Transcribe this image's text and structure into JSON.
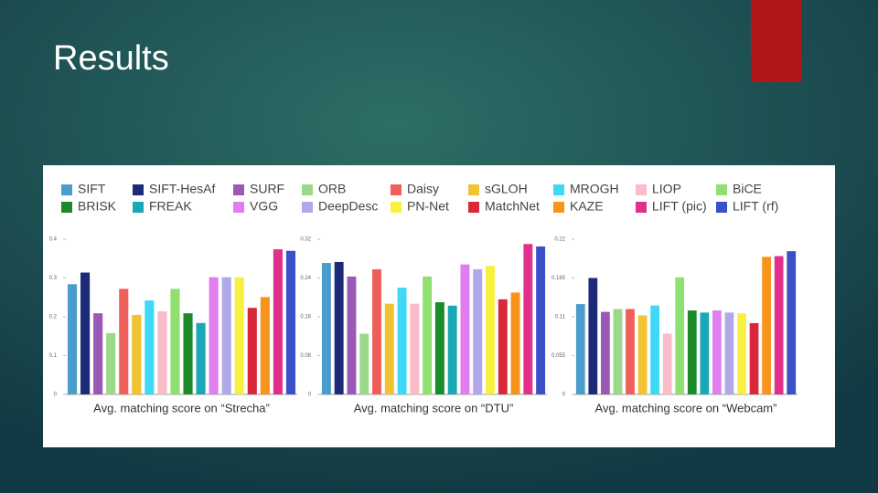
{
  "slide_title": "Results",
  "methods": [
    {
      "name": "SIFT",
      "color": "#4a9ccc"
    },
    {
      "name": "SIFT-HesAf",
      "color": "#1c2a78"
    },
    {
      "name": "SURF",
      "color": "#9b59b6"
    },
    {
      "name": "ORB",
      "color": "#9ad88a"
    },
    {
      "name": "Daisy",
      "color": "#f0605a"
    },
    {
      "name": "sGLOH",
      "color": "#f2c230"
    },
    {
      "name": "MROGH",
      "color": "#3fd9f5"
    },
    {
      "name": "LIOP",
      "color": "#f9bcc8"
    },
    {
      "name": "BiCE",
      "color": "#8fe070"
    },
    {
      "name": "BRISK",
      "color": "#1a8a2a"
    },
    {
      "name": "FREAK",
      "color": "#1aa8b8"
    },
    {
      "name": "VGG",
      "color": "#e07ef0"
    },
    {
      "name": "DeepDesc",
      "color": "#b0a8e8"
    },
    {
      "name": "PN-Net",
      "color": "#f8f040"
    },
    {
      "name": "MatchNet",
      "color": "#d8283a"
    },
    {
      "name": "KAZE",
      "color": "#f8941c"
    },
    {
      "name": "LIFT (pic)",
      "color": "#e0308a"
    },
    {
      "name": "LIFT (rf)",
      "color": "#3a50c8"
    }
  ],
  "chart_data": [
    {
      "type": "bar",
      "xlabel": "Avg. matching score on “Strecha”",
      "values": [
        0.284,
        0.314,
        0.209,
        0.158,
        0.272,
        0.205,
        0.242,
        0.214,
        0.272,
        0.209,
        0.184,
        0.302,
        0.302,
        0.302,
        0.223,
        0.251,
        0.374,
        0.37
      ],
      "ylim": [
        0,
        0.4
      ],
      "yticks": [
        0,
        0.1,
        0.2,
        0.3,
        0.4
      ]
    },
    {
      "type": "bar",
      "xlabel": "Avg. matching score on “DTU”",
      "values": [
        0.271,
        0.273,
        0.243,
        0.125,
        0.258,
        0.187,
        0.22,
        0.187,
        0.243,
        0.19,
        0.183,
        0.268,
        0.258,
        0.265,
        0.196,
        0.21,
        0.31,
        0.305
      ],
      "ylim": [
        0,
        0.32
      ],
      "yticks": [
        0,
        0.08,
        0.16,
        0.24,
        0.32
      ]
    },
    {
      "type": "bar",
      "xlabel": "Avg. matching score on “Webcam”",
      "values": [
        0.128,
        0.165,
        0.117,
        0.121,
        0.121,
        0.112,
        0.126,
        0.086,
        0.166,
        0.119,
        0.116,
        0.119,
        0.116,
        0.115,
        0.101,
        0.195,
        0.196,
        0.203
      ],
      "ylim": [
        0,
        0.22
      ],
      "yticks": [
        0,
        0.055,
        0.11,
        0.165,
        0.22
      ]
    }
  ]
}
